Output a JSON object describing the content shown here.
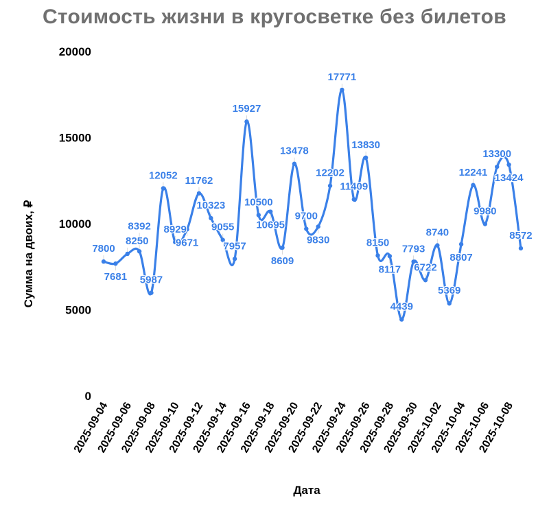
{
  "chart_data": {
    "type": "line",
    "title": "Стоимость жизни в кругосветке без билетов",
    "xlabel": "Дата",
    "ylabel": "Сумма на двоих, ₽",
    "ylim": [
      0,
      20000
    ],
    "yticks": [
      "0",
      "5000",
      "10000",
      "15000",
      "20000"
    ],
    "xticks": [
      "2025-09-04",
      "2025-09-06",
      "2025-09-08",
      "2025-09-10",
      "2025-09-12",
      "2025-09-14",
      "2025-09-16",
      "2025-09-18",
      "2025-09-20",
      "2025-09-22",
      "2025-09-24",
      "2025-09-26",
      "2025-09-28",
      "2025-09-30",
      "2025-10-02",
      "2025-10-04",
      "2025-10-06",
      "2025-10-08"
    ],
    "grid": false,
    "line_color": "#3a80e8",
    "smooth": true,
    "x": [
      "2025-09-04",
      "2025-09-05",
      "2025-09-06",
      "2025-09-07",
      "2025-09-08",
      "2025-09-09",
      "2025-09-10",
      "2025-09-11",
      "2025-09-12",
      "2025-09-13",
      "2025-09-14",
      "2025-09-15",
      "2025-09-16",
      "2025-09-17",
      "2025-09-18",
      "2025-09-19",
      "2025-09-20",
      "2025-09-21",
      "2025-09-22",
      "2025-09-23",
      "2025-09-24",
      "2025-09-25",
      "2025-09-26",
      "2025-09-27",
      "2025-09-28",
      "2025-09-29",
      "2025-09-30",
      "2025-10-01",
      "2025-10-02",
      "2025-10-03",
      "2025-10-04",
      "2025-10-05",
      "2025-10-06",
      "2025-10-07",
      "2025-10-08",
      "2025-10-09"
    ],
    "values": [
      7800,
      7681,
      8250,
      8392,
      5987,
      12052,
      8929,
      9671,
      11762,
      10323,
      9055,
      7957,
      15927,
      10500,
      10695,
      8609,
      13478,
      9700,
      9830,
      12202,
      17771,
      11409,
      13830,
      8150,
      8117,
      4439,
      7793,
      6722,
      8740,
      5369,
      8807,
      12241,
      9980,
      13300,
      13424,
      8572
    ]
  }
}
